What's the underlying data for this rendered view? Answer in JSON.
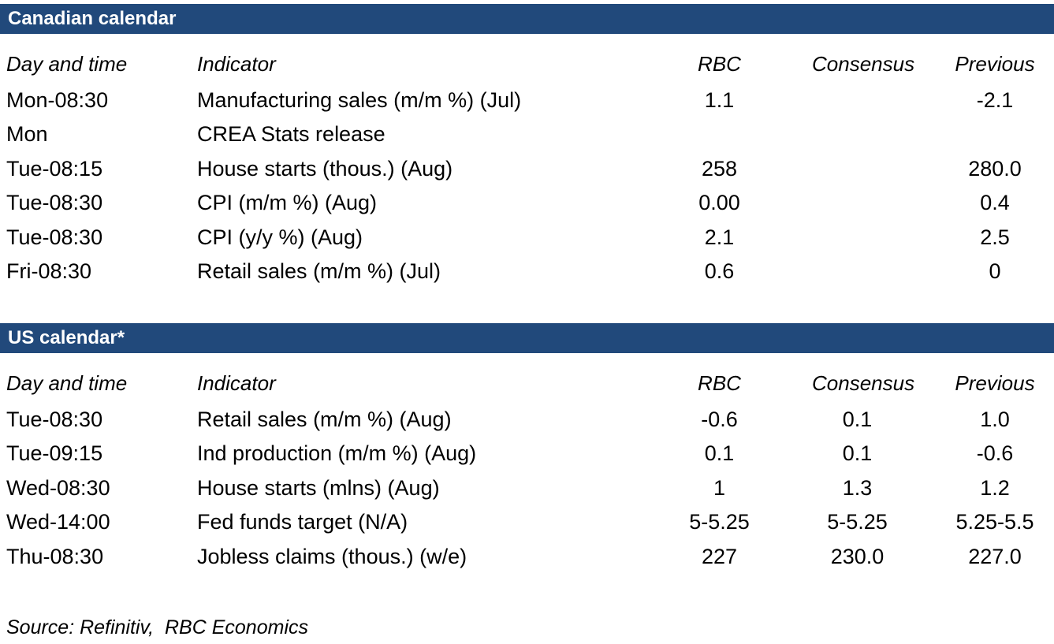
{
  "colors": {
    "section_bar_background": "#21497B",
    "section_bar_text": "#FFFFFF",
    "body_text": "#000000"
  },
  "tables": [
    {
      "title": "Canadian calendar",
      "columns": [
        "Day and time",
        "Indicator",
        "RBC",
        "Consensus",
        "Previous"
      ],
      "rows": [
        [
          "Mon-08:30",
          "Manufacturing sales (m/m %) (Jul)",
          "1.1",
          "",
          "-2.1"
        ],
        [
          "Mon",
          "CREA Stats release",
          "",
          "",
          ""
        ],
        [
          "Tue-08:15",
          "House starts (thous.) (Aug)",
          "258",
          "",
          "280.0"
        ],
        [
          "Tue-08:30",
          "CPI (m/m %) (Aug)",
          "0.00",
          "",
          "0.4"
        ],
        [
          "Tue-08:30",
          "CPI (y/y %) (Aug)",
          "2.1",
          "",
          "2.5"
        ],
        [
          "Fri-08:30",
          "Retail sales (m/m %) (Jul)",
          "0.6",
          "",
          "0"
        ]
      ]
    },
    {
      "title": "US calendar*",
      "columns": [
        "Day and time",
        "Indicator",
        "RBC",
        "Consensus",
        "Previous"
      ],
      "rows": [
        [
          "Tue-08:30",
          "Retail sales (m/m %) (Aug)",
          "-0.6",
          "0.1",
          "1.0"
        ],
        [
          "Tue-09:15",
          "Ind production (m/m %) (Aug)",
          "0.1",
          "0.1",
          "-0.6"
        ],
        [
          "Wed-08:30",
          "House starts (mlns) (Aug)",
          "1",
          "1.3",
          "1.2"
        ],
        [
          "Wed-14:00",
          "Fed funds target (N/A)",
          "5-5.25",
          "5-5.25",
          "5.25-5.5"
        ],
        [
          "Thu-08:30",
          "Jobless claims (thous.) (w/e)",
          "227",
          "230.0",
          "227.0"
        ]
      ]
    }
  ],
  "footer": {
    "source": "Source: Refinitiv,  RBC Economics"
  }
}
